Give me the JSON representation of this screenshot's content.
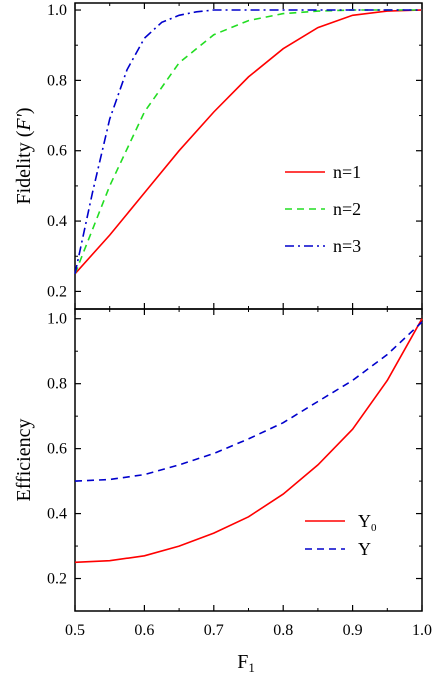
{
  "chart_data": [
    {
      "type": "line",
      "xlabel": "",
      "ylabel_main": "Fidelity (",
      "ylabel_italic": "F'",
      "ylabel_end": ")",
      "xlim": [
        0.5,
        1.0
      ],
      "ylim": [
        0.15,
        1.02
      ],
      "xticks": [
        "0.5",
        "0.6",
        "0.7",
        "0.8",
        "0.9",
        "1.0"
      ],
      "yticks": [
        "0.2",
        "0.4",
        "0.6",
        "0.8",
        "1.0"
      ],
      "ytick_values": [
        0.2,
        0.4,
        0.6,
        0.8,
        1.0
      ],
      "legend_position": "right-middle",
      "series": [
        {
          "name": "n=1",
          "color": "#ff0000",
          "dash": "solid",
          "x": [
            0.5,
            0.55,
            0.6,
            0.65,
            0.7,
            0.75,
            0.8,
            0.85,
            0.9,
            0.95,
            1.0
          ],
          "y": [
            0.25,
            0.36,
            0.48,
            0.6,
            0.71,
            0.81,
            0.89,
            0.95,
            0.985,
            0.997,
            1.0
          ]
        },
        {
          "name": "n=2",
          "color": "#22dd22",
          "dash": "dashed",
          "x": [
            0.5,
            0.55,
            0.6,
            0.65,
            0.7,
            0.75,
            0.8,
            0.85,
            0.9,
            0.95,
            1.0
          ],
          "y": [
            0.25,
            0.5,
            0.71,
            0.85,
            0.93,
            0.97,
            0.99,
            0.997,
            1.0,
            1.0,
            1.0
          ]
        },
        {
          "name": "n=3",
          "color": "#0000cc",
          "dash": "dashdot",
          "x": [
            0.5,
            0.525,
            0.55,
            0.575,
            0.6,
            0.625,
            0.65,
            0.675,
            0.7,
            0.75,
            0.8,
            0.9,
            1.0
          ],
          "y": [
            0.25,
            0.48,
            0.69,
            0.83,
            0.92,
            0.965,
            0.985,
            0.995,
            1.0,
            1.0,
            1.0,
            1.0,
            1.0
          ]
        }
      ]
    },
    {
      "type": "line",
      "xlabel": "F",
      "xlabel_sub": "1",
      "ylabel": "Efficiency",
      "xlim": [
        0.5,
        1.0
      ],
      "ylim": [
        0.1,
        1.03
      ],
      "xticks": [
        "0.5",
        "0.6",
        "0.7",
        "0.8",
        "0.9",
        "1.0"
      ],
      "yticks": [
        "0.2",
        "0.4",
        "0.6",
        "0.8",
        "1.0"
      ],
      "ytick_values": [
        0.2,
        0.4,
        0.6,
        0.8,
        1.0
      ],
      "legend_position": "bottom-right",
      "series": [
        {
          "name": "Y",
          "name_sub": "0",
          "color": "#ff0000",
          "dash": "solid",
          "x": [
            0.5,
            0.55,
            0.6,
            0.65,
            0.7,
            0.75,
            0.8,
            0.85,
            0.9,
            0.95,
            1.0
          ],
          "y": [
            0.25,
            0.255,
            0.27,
            0.3,
            0.34,
            0.39,
            0.46,
            0.55,
            0.66,
            0.81,
            1.0
          ]
        },
        {
          "name": "Y",
          "name_sub": "",
          "color": "#0000cc",
          "dash": "dashed",
          "x": [
            0.5,
            0.55,
            0.6,
            0.65,
            0.7,
            0.75,
            0.8,
            0.85,
            0.9,
            0.95,
            1.0
          ],
          "y": [
            0.5,
            0.505,
            0.52,
            0.55,
            0.585,
            0.63,
            0.68,
            0.745,
            0.81,
            0.89,
            0.99
          ]
        }
      ]
    }
  ]
}
